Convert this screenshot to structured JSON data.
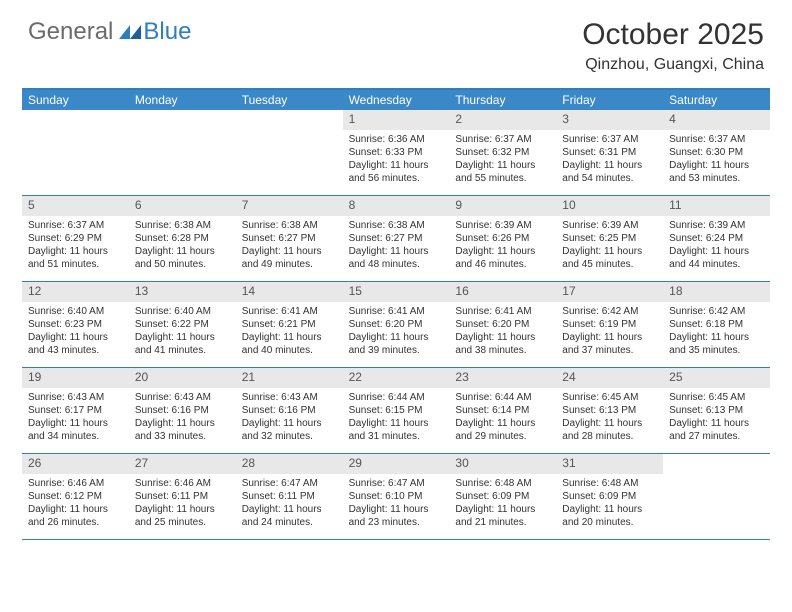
{
  "logo": {
    "part1": "General",
    "part2": "Blue"
  },
  "title": "October 2025",
  "location": "Qinzhou, Guangxi, China",
  "colors": {
    "accent": "#3a88c8",
    "rule": "#2f7ec0",
    "daynum_bg": "#e8e8e8",
    "text": "#333333",
    "logo_gray": "#6b6b6b"
  },
  "weekdays": [
    "Sunday",
    "Monday",
    "Tuesday",
    "Wednesday",
    "Thursday",
    "Friday",
    "Saturday"
  ],
  "weeks": [
    [
      null,
      null,
      null,
      {
        "n": "1",
        "sunrise": "6:36 AM",
        "sunset": "6:33 PM",
        "dl_h": "11",
        "dl_m": "56"
      },
      {
        "n": "2",
        "sunrise": "6:37 AM",
        "sunset": "6:32 PM",
        "dl_h": "11",
        "dl_m": "55"
      },
      {
        "n": "3",
        "sunrise": "6:37 AM",
        "sunset": "6:31 PM",
        "dl_h": "11",
        "dl_m": "54"
      },
      {
        "n": "4",
        "sunrise": "6:37 AM",
        "sunset": "6:30 PM",
        "dl_h": "11",
        "dl_m": "53"
      }
    ],
    [
      {
        "n": "5",
        "sunrise": "6:37 AM",
        "sunset": "6:29 PM",
        "dl_h": "11",
        "dl_m": "51"
      },
      {
        "n": "6",
        "sunrise": "6:38 AM",
        "sunset": "6:28 PM",
        "dl_h": "11",
        "dl_m": "50"
      },
      {
        "n": "7",
        "sunrise": "6:38 AM",
        "sunset": "6:27 PM",
        "dl_h": "11",
        "dl_m": "49"
      },
      {
        "n": "8",
        "sunrise": "6:38 AM",
        "sunset": "6:27 PM",
        "dl_h": "11",
        "dl_m": "48"
      },
      {
        "n": "9",
        "sunrise": "6:39 AM",
        "sunset": "6:26 PM",
        "dl_h": "11",
        "dl_m": "46"
      },
      {
        "n": "10",
        "sunrise": "6:39 AM",
        "sunset": "6:25 PM",
        "dl_h": "11",
        "dl_m": "45"
      },
      {
        "n": "11",
        "sunrise": "6:39 AM",
        "sunset": "6:24 PM",
        "dl_h": "11",
        "dl_m": "44"
      }
    ],
    [
      {
        "n": "12",
        "sunrise": "6:40 AM",
        "sunset": "6:23 PM",
        "dl_h": "11",
        "dl_m": "43"
      },
      {
        "n": "13",
        "sunrise": "6:40 AM",
        "sunset": "6:22 PM",
        "dl_h": "11",
        "dl_m": "41"
      },
      {
        "n": "14",
        "sunrise": "6:41 AM",
        "sunset": "6:21 PM",
        "dl_h": "11",
        "dl_m": "40"
      },
      {
        "n": "15",
        "sunrise": "6:41 AM",
        "sunset": "6:20 PM",
        "dl_h": "11",
        "dl_m": "39"
      },
      {
        "n": "16",
        "sunrise": "6:41 AM",
        "sunset": "6:20 PM",
        "dl_h": "11",
        "dl_m": "38"
      },
      {
        "n": "17",
        "sunrise": "6:42 AM",
        "sunset": "6:19 PM",
        "dl_h": "11",
        "dl_m": "37"
      },
      {
        "n": "18",
        "sunrise": "6:42 AM",
        "sunset": "6:18 PM",
        "dl_h": "11",
        "dl_m": "35"
      }
    ],
    [
      {
        "n": "19",
        "sunrise": "6:43 AM",
        "sunset": "6:17 PM",
        "dl_h": "11",
        "dl_m": "34"
      },
      {
        "n": "20",
        "sunrise": "6:43 AM",
        "sunset": "6:16 PM",
        "dl_h": "11",
        "dl_m": "33"
      },
      {
        "n": "21",
        "sunrise": "6:43 AM",
        "sunset": "6:16 PM",
        "dl_h": "11",
        "dl_m": "32"
      },
      {
        "n": "22",
        "sunrise": "6:44 AM",
        "sunset": "6:15 PM",
        "dl_h": "11",
        "dl_m": "31"
      },
      {
        "n": "23",
        "sunrise": "6:44 AM",
        "sunset": "6:14 PM",
        "dl_h": "11",
        "dl_m": "29"
      },
      {
        "n": "24",
        "sunrise": "6:45 AM",
        "sunset": "6:13 PM",
        "dl_h": "11",
        "dl_m": "28"
      },
      {
        "n": "25",
        "sunrise": "6:45 AM",
        "sunset": "6:13 PM",
        "dl_h": "11",
        "dl_m": "27"
      }
    ],
    [
      {
        "n": "26",
        "sunrise": "6:46 AM",
        "sunset": "6:12 PM",
        "dl_h": "11",
        "dl_m": "26"
      },
      {
        "n": "27",
        "sunrise": "6:46 AM",
        "sunset": "6:11 PM",
        "dl_h": "11",
        "dl_m": "25"
      },
      {
        "n": "28",
        "sunrise": "6:47 AM",
        "sunset": "6:11 PM",
        "dl_h": "11",
        "dl_m": "24"
      },
      {
        "n": "29",
        "sunrise": "6:47 AM",
        "sunset": "6:10 PM",
        "dl_h": "11",
        "dl_m": "23"
      },
      {
        "n": "30",
        "sunrise": "6:48 AM",
        "sunset": "6:09 PM",
        "dl_h": "11",
        "dl_m": "21"
      },
      {
        "n": "31",
        "sunrise": "6:48 AM",
        "sunset": "6:09 PM",
        "dl_h": "11",
        "dl_m": "20"
      },
      null
    ]
  ],
  "labels": {
    "sunrise": "Sunrise:",
    "sunset": "Sunset:",
    "daylight_prefix": "Daylight:",
    "hours_word": "hours",
    "and_word": "and",
    "minutes_word": "minutes."
  }
}
